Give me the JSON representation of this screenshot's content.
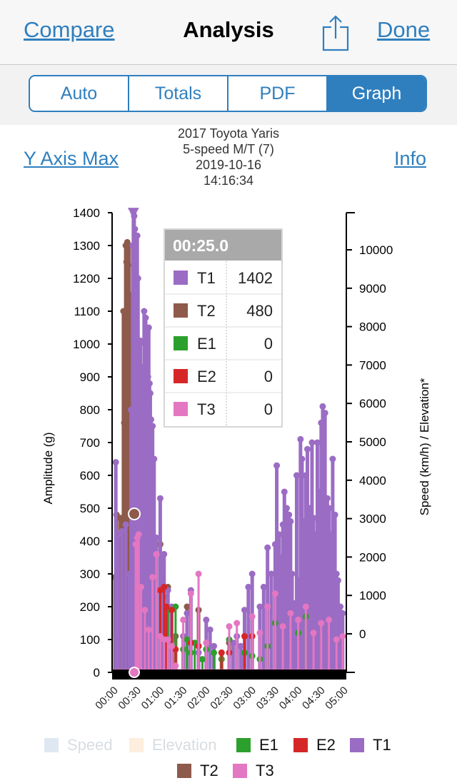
{
  "nav": {
    "left_label": "Compare",
    "title": "Analysis",
    "right_label": "Done",
    "share_icon": "share-icon"
  },
  "tabs": [
    {
      "label": "Auto",
      "active": false
    },
    {
      "label": "Totals",
      "active": false
    },
    {
      "label": "PDF",
      "active": false
    },
    {
      "label": "Graph",
      "active": true
    }
  ],
  "header": {
    "y_axis_max_label": "Y Axis Max",
    "info_label": "Info",
    "vehicle": "2017 Toyota Yaris",
    "transmission": "5-speed M/T (7)",
    "date": "2019-10-16",
    "time": "14:16:34"
  },
  "colors": {
    "accent": "#2f7fbe",
    "T1": "#9b6cc4",
    "T2": "#8e5a4b",
    "E1": "#2ca02c",
    "E2": "#d62728",
    "T3": "#e377c2",
    "speed": "#dfe8f1",
    "elevation": "#fdeedd"
  },
  "tooltip": {
    "time": "00:25.0",
    "rows": [
      {
        "name": "T1",
        "value": "1402",
        "color": "#9b6cc4"
      },
      {
        "name": "T2",
        "value": "480",
        "color": "#8e5a4b"
      },
      {
        "name": "E1",
        "value": "0",
        "color": "#2ca02c"
      },
      {
        "name": "E2",
        "value": "0",
        "color": "#d62728"
      },
      {
        "name": "T3",
        "value": "0",
        "color": "#e377c2"
      }
    ]
  },
  "chart_data": {
    "type": "scatter",
    "ylabel": "Amplitude (g)",
    "y2label": "Speed (km/h) / Elevation*",
    "ylim": [
      0,
      1400
    ],
    "y2lim": [
      -1000,
      11000
    ],
    "xlim": [
      0,
      300
    ],
    "y_ticks": [
      0,
      100,
      200,
      300,
      400,
      500,
      600,
      700,
      800,
      900,
      1000,
      1100,
      1200,
      1300,
      1400
    ],
    "y2_ticks": [
      0,
      1000,
      2000,
      3000,
      4000,
      5000,
      6000,
      7000,
      8000,
      9000,
      10000
    ],
    "x_ticks": [
      "00:00",
      "00:30",
      "01:00",
      "01:30",
      "02:00",
      "02:30",
      "03:00",
      "03:30",
      "04:00",
      "04:30",
      "05:00"
    ],
    "legend": [
      "Speed",
      "Elevation",
      "E1",
      "E2",
      "T1",
      "T2",
      "T3"
    ],
    "legend_inactive": [
      "Speed",
      "Elevation"
    ],
    "series": [
      {
        "name": "T2",
        "color": "#8e5a4b",
        "x": [
          1,
          3,
          5,
          8,
          10,
          12,
          13,
          14,
          15,
          16,
          17,
          18,
          19,
          20,
          21,
          22,
          23,
          24,
          25,
          26,
          28,
          30,
          35,
          60,
          63,
          65,
          70,
          75,
          80,
          95,
          110,
          140,
          150
        ],
        "values": [
          290,
          480,
          400,
          470,
          300,
          1100,
          760,
          840,
          1300,
          1250,
          1310,
          1240,
          1300,
          1020,
          1150,
          980,
          420,
          300,
          480,
          450,
          280,
          350,
          170,
          390,
          320,
          230,
          260,
          100,
          110,
          200,
          190,
          60,
          90
        ]
      },
      {
        "name": "T1",
        "color": "#9b6cc4",
        "x": [
          2,
          5,
          10,
          15,
          20,
          22,
          24,
          25,
          26,
          27,
          28,
          30,
          31,
          32,
          33,
          34,
          35,
          36,
          37,
          38,
          39,
          40,
          41,
          42,
          43,
          44,
          45,
          46,
          47,
          48,
          50,
          52,
          55,
          60,
          62,
          65,
          70,
          75,
          90,
          95,
          100,
          110,
          120,
          125,
          130,
          150,
          155,
          160,
          165,
          168,
          170,
          175,
          180,
          190,
          195,
          200,
          205,
          210,
          212,
          215,
          218,
          220,
          222,
          225,
          228,
          230,
          232,
          235,
          238,
          240,
          243,
          245,
          248,
          250,
          252,
          255,
          258,
          260,
          262,
          265,
          268,
          270,
          272,
          275,
          278,
          280,
          282,
          285,
          288,
          290,
          292,
          295,
          298
        ],
        "values": [
          640,
          420,
          430,
          450,
          300,
          800,
          1300,
          1402,
          1390,
          1350,
          1250,
          1330,
          1200,
          950,
          840,
          1010,
          700,
          760,
          850,
          930,
          1100,
          1000,
          1080,
          950,
          800,
          900,
          1050,
          880,
          850,
          770,
          750,
          650,
          410,
          530,
          350,
          360,
          250,
          200,
          110,
          180,
          250,
          60,
          160,
          130,
          80,
          60,
          90,
          110,
          80,
          60,
          190,
          260,
          300,
          200,
          260,
          380,
          300,
          390,
          630,
          420,
          350,
          450,
          550,
          500,
          480,
          460,
          300,
          210,
          600,
          280,
          710,
          650,
          460,
          600,
          680,
          500,
          700,
          470,
          420,
          700,
          550,
          760,
          810,
          790,
          530,
          500,
          420,
          650,
          480,
          300,
          280,
          200,
          180
        ]
      },
      {
        "name": "E1",
        "color": "#2ca02c",
        "x": [
          70,
          80,
          90,
          95,
          100,
          105,
          110,
          115,
          120,
          130,
          140,
          150,
          170,
          180,
          190,
          200,
          210,
          240,
          250
        ],
        "values": [
          190,
          200,
          70,
          100,
          60,
          90,
          80,
          40,
          70,
          60,
          40,
          100,
          60,
          50,
          40,
          80,
          150,
          120,
          170
        ]
      },
      {
        "name": "E2",
        "color": "#d62728",
        "x": [
          60,
          65,
          68,
          75,
          80,
          100,
          110,
          140,
          150,
          170,
          180
        ],
        "values": [
          250,
          260,
          200,
          190,
          70,
          90,
          80,
          60,
          60,
          110,
          110
        ]
      },
      {
        "name": "T3",
        "color": "#e377c2",
        "x": [
          1,
          5,
          10,
          20,
          25,
          28,
          30,
          32,
          35,
          40,
          45,
          50,
          55,
          60,
          65,
          70,
          75,
          80,
          90,
          100,
          110,
          120,
          150,
          160,
          180,
          190,
          200,
          210,
          220,
          230,
          240,
          250,
          260,
          270,
          280,
          290,
          298
        ],
        "values": [
          0,
          0,
          0,
          0,
          0,
          390,
          410,
          420,
          260,
          190,
          130,
          290,
          360,
          110,
          100,
          100,
          80,
          20,
          160,
          240,
          300,
          90,
          140,
          150,
          170,
          120,
          200,
          240,
          140,
          180,
          160,
          200,
          120,
          150,
          160,
          100,
          110
        ]
      }
    ]
  }
}
